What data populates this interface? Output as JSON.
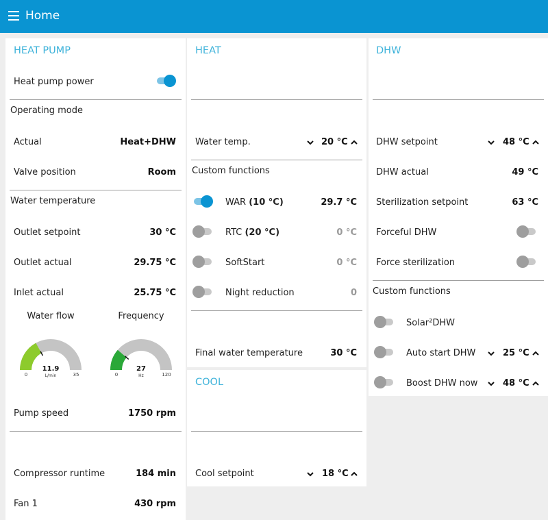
{
  "app": {
    "title": "Home"
  },
  "heat_pump": {
    "header": "HEAT PUMP",
    "power_label": "Heat pump power",
    "operating_mode": "Operating mode",
    "actual_label": "Actual",
    "actual_value": "Heat+DHW",
    "valve_label": "Valve position",
    "valve_value": "Room",
    "water_temperature": "Water temperature",
    "outlet_setpoint_label": "Outlet setpoint",
    "outlet_setpoint_value": "30 °C",
    "outlet_actual_label": "Outlet actual",
    "outlet_actual_value": "29.75 °C",
    "inlet_actual_label": "Inlet actual",
    "inlet_actual_value": "25.75 °C",
    "water_flow": {
      "title": "Water flow",
      "value": "11.9",
      "unit": "L/min",
      "min": "0",
      "max": "35",
      "fraction": 0.34
    },
    "frequency": {
      "title": "Frequency",
      "value": "27",
      "unit": "Hz",
      "min": "0",
      "max": "120",
      "fraction": 0.225
    },
    "pump_speed_label": "Pump speed",
    "pump_speed_value": "1750 rpm",
    "compressor_runtime_label": "Compressor runtime",
    "compressor_runtime_value": "184 min",
    "fan1_label": "Fan 1",
    "fan1_value": "430 rpm"
  },
  "heat": {
    "header": "HEAT",
    "water_temp_label": "Water temp.",
    "water_temp_value": "20 °C",
    "custom_functions": "Custom functions",
    "war_label": "WAR",
    "war_setting": "(10 °C)",
    "war_value": "29.7 °C",
    "rtc_label": "RTC",
    "rtc_setting": "(20 °C)",
    "rtc_value": "0 °C",
    "softstart_label": "SoftStart",
    "softstart_value": "0 °C",
    "night_label": "Night reduction",
    "night_value": "0",
    "final_label": "Final water temperature",
    "final_value": "30 °C"
  },
  "cool": {
    "header": "COOL",
    "setpoint_label": "Cool setpoint",
    "setpoint_value": "18 °C"
  },
  "dhw": {
    "header": "DHW",
    "setpoint_label": "DHW setpoint",
    "setpoint_value": "48 °C",
    "actual_label": "DHW actual",
    "actual_value": "49 °C",
    "steril_label": "Sterilization setpoint",
    "steril_value": "63 °C",
    "forceful_label": "Forceful DHW",
    "force_steril_label": "Force sterilization",
    "custom_functions": "Custom functions",
    "solar_label": "Solar²DHW",
    "auto_start_label": "Auto start DHW",
    "auto_start_value": "25 °C",
    "boost_label": "Boost DHW now",
    "boost_value": "48 °C"
  },
  "colors": {
    "accent": "#0a94d2",
    "header_text": "#3fb3da",
    "gauge_fill": "#8dcb2c",
    "gauge_fill2": "#2aa838",
    "gauge_track": "#c4c4c4"
  }
}
